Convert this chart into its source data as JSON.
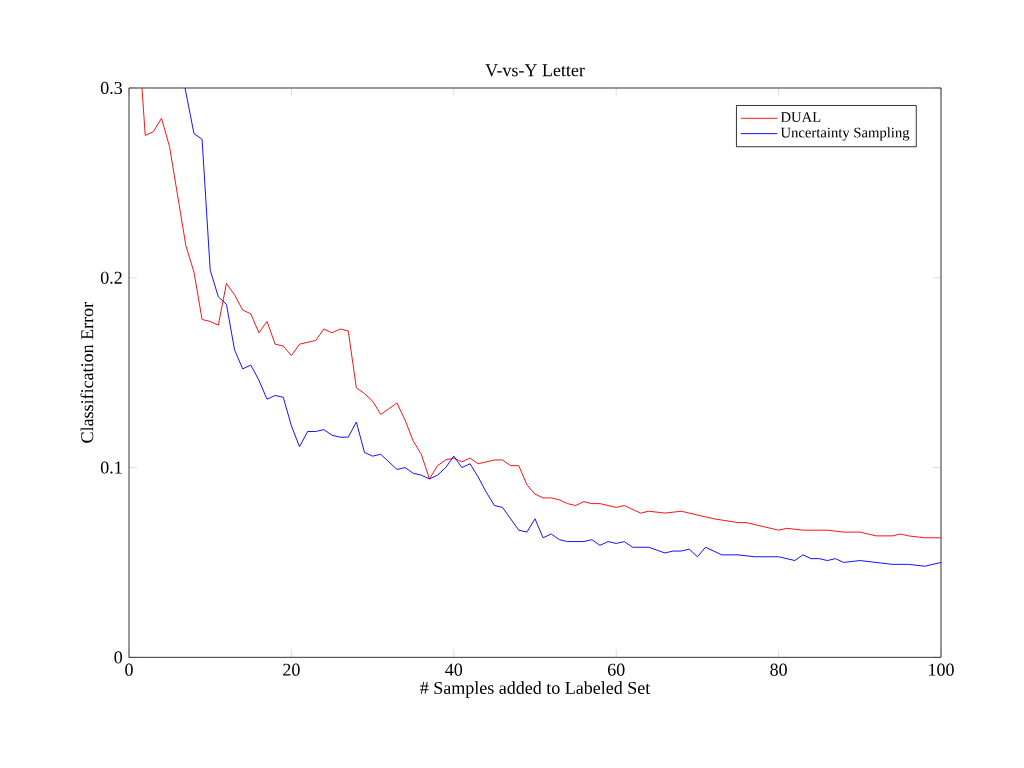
{
  "chart_data": {
    "type": "line",
    "title": "V-vs-Y Letter",
    "xlabel": "# Samples added to Labeled Set",
    "ylabel": "Classification Error",
    "xlim": [
      0,
      100
    ],
    "ylim": [
      0,
      0.3
    ],
    "xticks": [
      0,
      20,
      40,
      60,
      80,
      100
    ],
    "yticks": [
      0,
      0.1,
      0.2,
      0.3
    ],
    "grid": false,
    "legend": "top right",
    "marker": "none",
    "line_style": "solid",
    "series": [
      {
        "name": "DUAL",
        "color": "#ff0000",
        "x": [
          1.6,
          2,
          3,
          4,
          5,
          6,
          7,
          8,
          9,
          10,
          11,
          12,
          13,
          14,
          15,
          16,
          17,
          18,
          19,
          20,
          21,
          22,
          23,
          24,
          25,
          26,
          27,
          28,
          29,
          30,
          31,
          32,
          33,
          34,
          35,
          36,
          37,
          38,
          39,
          40,
          41,
          42,
          43,
          44,
          45,
          46,
          47,
          48,
          49,
          50,
          51,
          52,
          53,
          54,
          55,
          56,
          57,
          58,
          60,
          61,
          63,
          64,
          66,
          68,
          70,
          72,
          75,
          76,
          78,
          80,
          81,
          83,
          86,
          88,
          90,
          92,
          94,
          95,
          96,
          98,
          100
        ],
        "values": [
          0.3,
          0.275,
          0.277,
          0.284,
          0.269,
          0.243,
          0.217,
          0.203,
          0.178,
          0.177,
          0.175,
          0.197,
          0.191,
          0.183,
          0.181,
          0.171,
          0.177,
          0.165,
          0.164,
          0.159,
          0.165,
          0.166,
          0.167,
          0.173,
          0.171,
          0.173,
          0.172,
          0.142,
          0.139,
          0.135,
          0.128,
          0.131,
          0.134,
          0.125,
          0.114,
          0.107,
          0.094,
          0.101,
          0.104,
          0.105,
          0.103,
          0.105,
          0.102,
          0.103,
          0.104,
          0.104,
          0.101,
          0.101,
          0.091,
          0.086,
          0.084,
          0.084,
          0.083,
          0.081,
          0.08,
          0.082,
          0.081,
          0.081,
          0.079,
          0.08,
          0.076,
          0.077,
          0.076,
          0.077,
          0.075,
          0.073,
          0.071,
          0.071,
          0.069,
          0.067,
          0.068,
          0.067,
          0.067,
          0.066,
          0.066,
          0.064,
          0.064,
          0.065,
          0.064,
          0.063,
          0.063
        ]
      },
      {
        "name": "Uncertainty Sampling",
        "color": "#0000ff",
        "x": [
          6.9,
          8,
          9,
          10,
          11,
          12,
          13,
          14,
          15,
          16,
          17,
          18,
          19,
          20,
          21,
          22,
          23,
          24,
          25,
          26,
          27,
          28,
          29,
          30,
          31,
          32,
          33,
          34,
          35,
          36,
          37,
          38,
          39,
          40,
          41,
          42,
          43,
          44,
          45,
          46,
          47,
          48,
          49,
          50,
          51,
          52,
          53,
          54,
          55,
          56,
          57,
          58,
          59,
          60,
          61,
          62,
          64,
          66,
          67,
          68,
          69,
          70,
          71,
          73,
          75,
          77,
          78,
          80,
          82,
          83,
          84,
          85,
          86,
          87,
          88,
          90,
          92,
          94,
          96,
          98,
          100
        ],
        "values": [
          0.3,
          0.276,
          0.273,
          0.204,
          0.19,
          0.186,
          0.162,
          0.152,
          0.154,
          0.146,
          0.136,
          0.138,
          0.137,
          0.122,
          0.111,
          0.119,
          0.119,
          0.12,
          0.117,
          0.116,
          0.116,
          0.124,
          0.108,
          0.106,
          0.107,
          0.103,
          0.099,
          0.1,
          0.097,
          0.096,
          0.094,
          0.096,
          0.1,
          0.106,
          0.1,
          0.102,
          0.095,
          0.087,
          0.08,
          0.079,
          0.073,
          0.067,
          0.066,
          0.073,
          0.063,
          0.065,
          0.062,
          0.061,
          0.061,
          0.061,
          0.062,
          0.059,
          0.061,
          0.06,
          0.061,
          0.058,
          0.058,
          0.055,
          0.056,
          0.056,
          0.057,
          0.053,
          0.058,
          0.054,
          0.054,
          0.053,
          0.053,
          0.053,
          0.051,
          0.054,
          0.052,
          0.052,
          0.051,
          0.052,
          0.05,
          0.051,
          0.05,
          0.049,
          0.049,
          0.048,
          0.05
        ]
      }
    ]
  }
}
